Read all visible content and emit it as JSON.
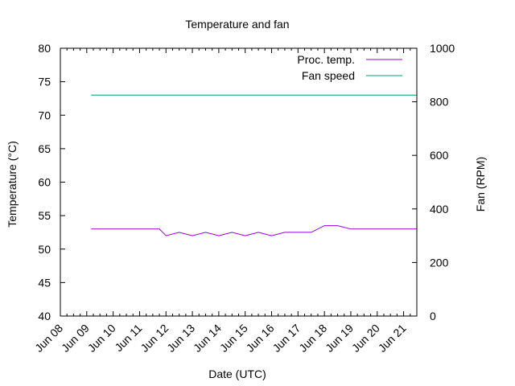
{
  "chart_data": {
    "type": "line",
    "title": "Temperature and fan",
    "xlabel": "Date (UTC)",
    "ylabel": "Temperature (°C)",
    "y2label": "Fan (RPM)",
    "xlim": [
      "2023-06-08",
      "2023-06-21"
    ],
    "x_tick_labels": [
      "Jun 08",
      "Jun 09",
      "Jun 10",
      "Jun 11",
      "Jun 12",
      "Jun 13",
      "Jun 14",
      "Jun 15",
      "Jun 16",
      "Jun 17",
      "Jun 18",
      "Jun 19",
      "Jun 20",
      "Jun 21"
    ],
    "ylim": [
      40,
      80
    ],
    "y_ticks": [
      40,
      45,
      50,
      55,
      60,
      65,
      70,
      75,
      80
    ],
    "y2lim": [
      0,
      1000
    ],
    "y2_ticks": [
      0,
      200,
      400,
      600,
      800,
      1000
    ],
    "grid": false,
    "legend_position": "top-right",
    "series": [
      {
        "name": "Proc. temp.",
        "axis": "left",
        "color": "#9400d3",
        "x": [
          "2023-06-09 04:00",
          "2023-06-09 12:00",
          "2023-06-10 00:00",
          "2023-06-10 12:00",
          "2023-06-11 00:00",
          "2023-06-11 12:00",
          "2023-06-11 18:00",
          "2023-06-12 00:00",
          "2023-06-12 12:00",
          "2023-06-13 00:00",
          "2023-06-13 12:00",
          "2023-06-14 00:00",
          "2023-06-14 12:00",
          "2023-06-15 00:00",
          "2023-06-15 12:00",
          "2023-06-16 00:00",
          "2023-06-16 12:00",
          "2023-06-17 00:00",
          "2023-06-17 12:00",
          "2023-06-18 00:00",
          "2023-06-18 12:00",
          "2023-06-19 00:00",
          "2023-06-19 12:00",
          "2023-06-20 00:00",
          "2023-06-20 12:00",
          "2023-06-21 00:00",
          "2023-06-21 12:00"
        ],
        "y": [
          53,
          53,
          53,
          53,
          53,
          53,
          53,
          52,
          52.5,
          52,
          52.5,
          52,
          52.5,
          52,
          52.5,
          52,
          52.5,
          52.5,
          52.5,
          53.5,
          53.5,
          53,
          53,
          53,
          53,
          53,
          53
        ]
      },
      {
        "name": "Fan speed",
        "axis": "right",
        "color": "#009e73",
        "x": [
          "2023-06-09 04:00",
          "2023-06-10 00:00",
          "2023-06-11 00:00",
          "2023-06-12 00:00",
          "2023-06-13 00:00",
          "2023-06-14 00:00",
          "2023-06-15 00:00",
          "2023-06-16 00:00",
          "2023-06-17 00:00",
          "2023-06-18 00:00",
          "2023-06-19 00:00",
          "2023-06-20 00:00",
          "2023-06-21 00:00",
          "2023-06-21 12:00"
        ],
        "y": [
          825,
          825,
          825,
          825,
          825,
          825,
          825,
          825,
          825,
          825,
          825,
          825,
          825,
          825
        ]
      }
    ]
  }
}
